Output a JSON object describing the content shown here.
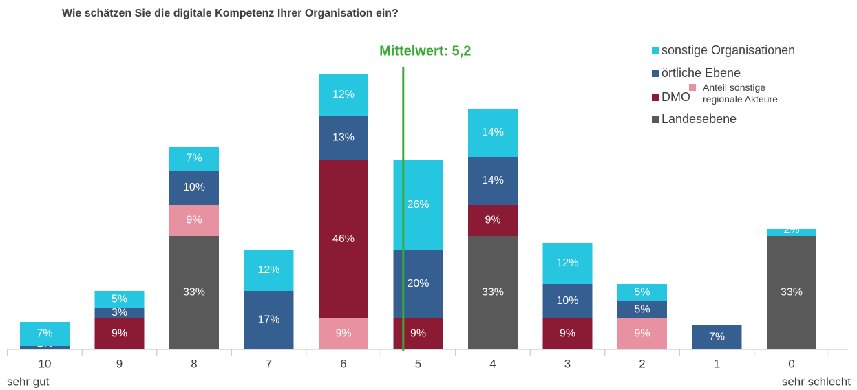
{
  "chart_data": {
    "type": "stacked_bar",
    "title": "Wie schätzen Sie die digitale Kompetenz Ihrer Organisation ein?",
    "categories": [
      "10",
      "9",
      "8",
      "7",
      "6",
      "5",
      "4",
      "3",
      "2",
      "1",
      "0"
    ],
    "x_annotations": {
      "left": "sehr gut",
      "right": "sehr schlecht"
    },
    "mean": {
      "value": 5.2,
      "label": "Mittelwert: 5,2",
      "color": "#3aa935"
    },
    "series": [
      {
        "name": "Landesebene",
        "color": "#595959",
        "values": [
          null,
          null,
          33,
          null,
          null,
          null,
          33,
          null,
          null,
          null,
          33
        ],
        "value_labels": [
          null,
          null,
          "33%",
          null,
          null,
          null,
          "33%",
          null,
          null,
          null,
          "33%"
        ]
      },
      {
        "name": "Anteil sonstige regionale Akteure",
        "color": "#e891a0",
        "values": [
          null,
          null,
          9,
          null,
          9,
          null,
          null,
          null,
          9,
          null,
          null
        ],
        "value_labels": [
          null,
          null,
          "9%",
          null,
          "9%",
          null,
          null,
          null,
          "9%",
          null,
          null
        ]
      },
      {
        "name": "DMO",
        "color": "#8b1a35",
        "values": [
          null,
          9,
          null,
          null,
          46,
          9,
          9,
          9,
          null,
          null,
          null
        ],
        "value_labels": [
          null,
          "9%",
          null,
          null,
          "46%",
          "9%",
          "9%",
          "9%",
          null,
          null,
          null
        ]
      },
      {
        "name": "örtliche Ebene",
        "color": "#355f91",
        "values": [
          1,
          3,
          10,
          17,
          13,
          20,
          14,
          10,
          5,
          7,
          null
        ],
        "value_labels": [
          "1%",
          "3%",
          "10%",
          "17%",
          "13%",
          "20%",
          "14%",
          "10%",
          "5%",
          "7%",
          null
        ]
      },
      {
        "name": "sonstige Organisationen",
        "color": "#26c6e0",
        "values": [
          7,
          5,
          7,
          12,
          12,
          26,
          14,
          12,
          5,
          null,
          2
        ],
        "value_labels": [
          "7%",
          "5%",
          "7%",
          "12%",
          "12%",
          "26%",
          "14%",
          "12%",
          "5%",
          null,
          "2%"
        ]
      }
    ]
  }
}
